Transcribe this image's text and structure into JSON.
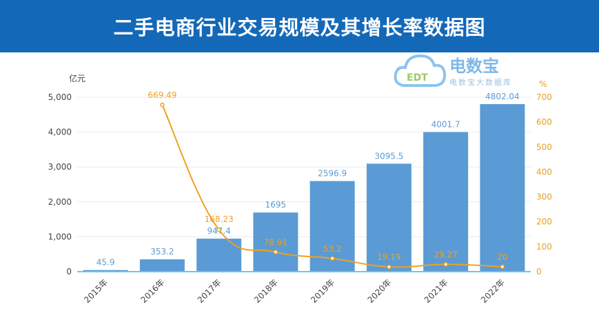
{
  "title": "二手电商行业交易规模及其增长率数据图",
  "logo": {
    "name": "电数宝",
    "subtitle": "电数宝大数据库",
    "mark": "EDT"
  },
  "chart_data": {
    "type": "bar",
    "categories": [
      "2015年",
      "2016年",
      "2017年",
      "2018年",
      "2019年",
      "2020年",
      "2021年",
      "2022年"
    ],
    "series": [
      {
        "type": "bar",
        "axis": "left",
        "values": [
          45.9,
          353.2,
          947.4,
          1695,
          2596.9,
          3095.5,
          4001.7,
          4802.04
        ],
        "labels": [
          "45.9",
          "353.2",
          "947.4",
          "1695",
          "2596.9",
          "3095.5",
          "4001.7",
          "4802.04"
        ],
        "color": "#5b9bd5"
      },
      {
        "type": "line",
        "axis": "right",
        "values": [
          null,
          669.49,
          168.23,
          78.91,
          53.2,
          19.19,
          29.27,
          20
        ],
        "labels": [
          "",
          "669.49",
          "168.23",
          "78.91",
          "53.2",
          "19.19",
          "29.27",
          "20"
        ],
        "color": "#f0a020"
      }
    ],
    "ylabel_left": "亿元",
    "ylabel_right": "%",
    "ylim_left": [
      0,
      5000
    ],
    "yticks_left": [
      "0",
      "1,000",
      "2,000",
      "3,000",
      "4,000",
      "5,000"
    ],
    "ylim_right": [
      0,
      700
    ],
    "yticks_right": [
      "0",
      "100",
      "200",
      "300",
      "400",
      "500",
      "600",
      "700"
    ],
    "grid": true,
    "legend": "none"
  }
}
